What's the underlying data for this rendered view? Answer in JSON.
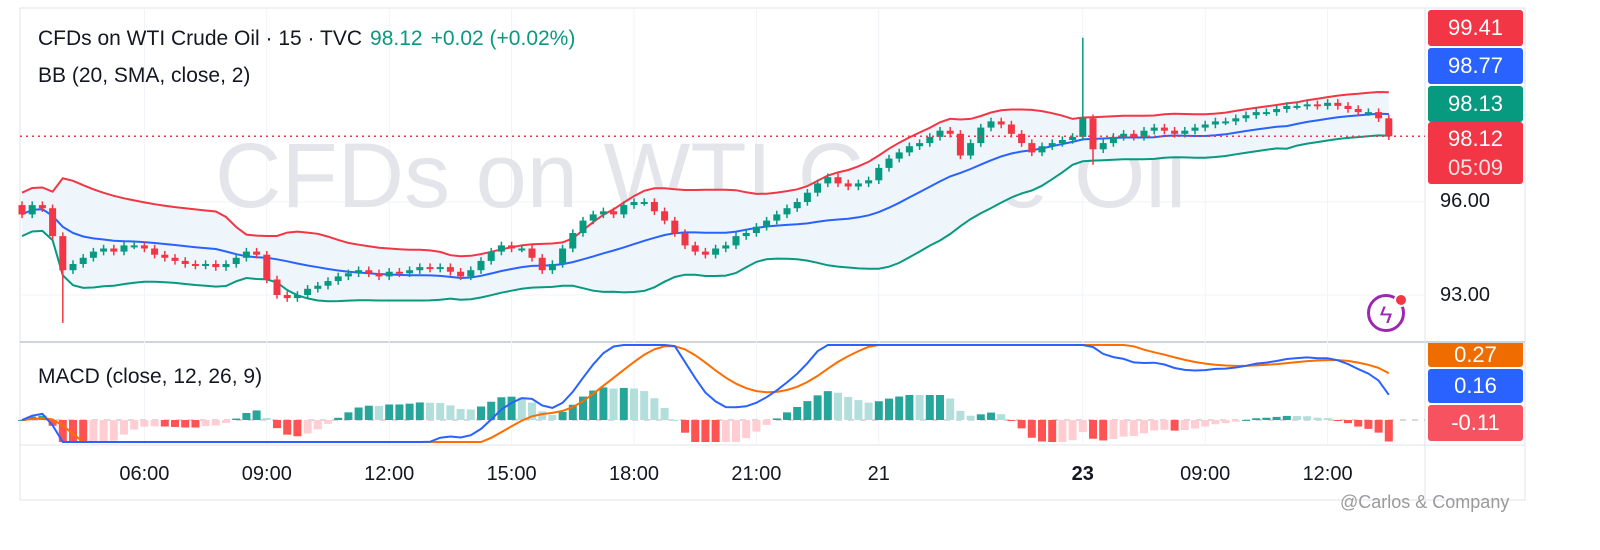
{
  "header": {
    "symbol": "CFDs on WTI Crude Oil · 15 · TVC",
    "price": "98.12",
    "change": "+0.02 (+0.02%)",
    "indicator_bb": "BB (20, SMA, close, 2)",
    "indicator_macd": "MACD (close, 12, 26, 9)"
  },
  "watermark": "CFDs on WTI Crude Oil",
  "credit": "@Carlos & Company",
  "price_tags": {
    "bb_upper": "99.41",
    "bb_basis": "98.77",
    "bb_lower": "98.13",
    "last": "98.12",
    "countdown": "05:09"
  },
  "macd_tags": {
    "signal": "0.27",
    "macd": "0.16",
    "hist": "-0.11"
  },
  "colors": {
    "up": "#089981",
    "down": "#f23645",
    "basis": "#2962ff",
    "upper": "#f23645",
    "lower": "#089981",
    "signal": "#ff6d00",
    "band_fill": "#eef5fb"
  },
  "chart_data": {
    "type": "candlestick",
    "title": "CFDs on WTI Crude Oil · 15 · TVC",
    "y_ticks": [
      "93.00",
      "96.00"
    ],
    "ylim": [
      91.5,
      102.5
    ],
    "x_ticks": [
      "06:00",
      "09:00",
      "12:00",
      "15:00",
      "18:00",
      "21:00",
      "21",
      "23",
      "09:00",
      "12:00"
    ],
    "x_tick_index": [
      12,
      24,
      36,
      48,
      60,
      72,
      84,
      104,
      116,
      128
    ],
    "bold_ticks": [
      "23"
    ],
    "closes": [
      95.6,
      95.9,
      95.8,
      94.9,
      93.8,
      94.0,
      94.2,
      94.4,
      94.5,
      94.4,
      94.6,
      94.6,
      94.5,
      94.3,
      94.2,
      94.1,
      94.0,
      93.95,
      94.0,
      93.9,
      94.0,
      94.2,
      94.4,
      94.3,
      93.5,
      93.0,
      92.9,
      93.0,
      93.2,
      93.3,
      93.45,
      93.6,
      93.7,
      93.8,
      93.7,
      93.6,
      93.75,
      93.7,
      93.8,
      93.9,
      93.85,
      93.9,
      93.75,
      93.6,
      93.8,
      94.1,
      94.4,
      94.6,
      94.5,
      94.5,
      94.2,
      93.8,
      94.0,
      94.5,
      95.0,
      95.4,
      95.6,
      95.7,
      95.6,
      95.9,
      96.0,
      96.0,
      95.7,
      95.4,
      95.0,
      94.6,
      94.4,
      94.3,
      94.5,
      94.6,
      94.9,
      95.0,
      95.2,
      95.4,
      95.6,
      95.8,
      96.0,
      96.3,
      96.6,
      96.8,
      96.6,
      96.5,
      96.6,
      96.7,
      97.1,
      97.4,
      97.6,
      97.8,
      97.9,
      98.1,
      98.3,
      98.2,
      97.5,
      97.9,
      98.4,
      98.6,
      98.5,
      98.2,
      97.9,
      97.6,
      97.8,
      97.9,
      98.0,
      98.1,
      98.7,
      97.7,
      97.9,
      98.1,
      98.2,
      98.1,
      98.3,
      98.4,
      98.3,
      98.2,
      98.3,
      98.4,
      98.5,
      98.6,
      98.6,
      98.7,
      98.8,
      98.9,
      98.9,
      99.0,
      99.1,
      99.1,
      99.15,
      99.1,
      99.2,
      99.1,
      99.0,
      98.9,
      98.9,
      98.7,
      98.12
    ],
    "first_open": 95.9,
    "high_overrides": {
      "104": 101.3
    },
    "low_overrides": {
      "4": 92.1,
      "105": 97.2
    },
    "last_price": 98.12,
    "indicators": [
      "BB (20, SMA, close, 2)",
      "MACD (close, 12, 26, 9)"
    ]
  }
}
